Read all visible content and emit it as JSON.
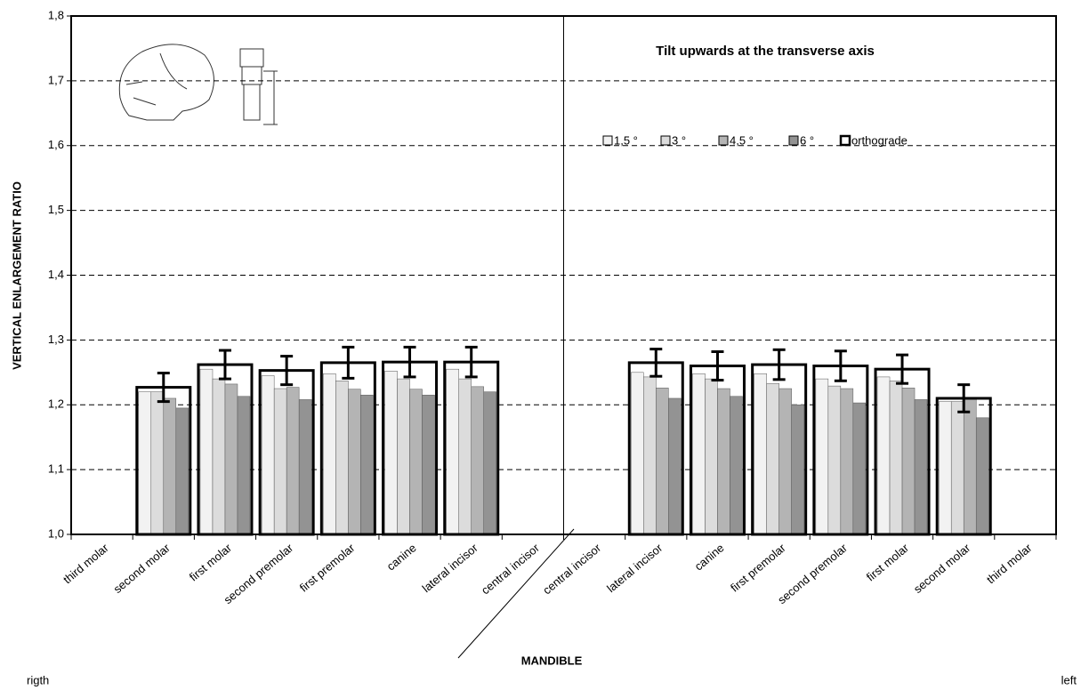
{
  "chart_data": {
    "type": "bar",
    "title": "Tilt upwards at the transverse axis",
    "y_label": "VERTICAL ENLARGEMENT RATIO",
    "x_label": "MANDIBLE",
    "side_labels": [
      "rigth",
      "left"
    ],
    "categories": [
      "third molar",
      "second molar",
      "first molar",
      "second premolar",
      "first premolar",
      "canine",
      "lateral incisor",
      "central incisor",
      "central incisor",
      "lateral incisor",
      "canine",
      "first premolar",
      "second premolar",
      "first molar",
      "second molar",
      "third molar"
    ],
    "series": [
      {
        "name": "1,5 °",
        "color": "#f2f2f2",
        "values": [
          null,
          1.22,
          1.255,
          1.245,
          1.248,
          1.252,
          1.255,
          null,
          null,
          1.25,
          1.248,
          1.248,
          1.24,
          1.243,
          1.205,
          null
        ]
      },
      {
        "name": "3 °",
        "color": "#dcdcdc",
        "values": [
          null,
          1.22,
          1.24,
          1.225,
          1.237,
          1.24,
          1.24,
          null,
          null,
          1.243,
          1.24,
          1.233,
          1.229,
          1.237,
          1.205,
          null
        ]
      },
      {
        "name": "4,5 °",
        "color": "#b4b4b4",
        "values": [
          null,
          1.21,
          1.232,
          1.227,
          1.224,
          1.224,
          1.228,
          null,
          null,
          1.226,
          1.225,
          1.225,
          1.225,
          1.226,
          1.21,
          null
        ]
      },
      {
        "name": "6 °",
        "color": "#939393",
        "values": [
          null,
          1.195,
          1.213,
          1.208,
          1.215,
          1.215,
          1.22,
          null,
          null,
          1.21,
          1.213,
          1.2,
          1.203,
          1.208,
          1.18,
          null
        ]
      },
      {
        "name": "orthograde",
        "color": "#000000",
        "values": [
          null,
          1.227,
          1.262,
          1.253,
          1.265,
          1.266,
          1.266,
          null,
          null,
          1.265,
          1.26,
          1.262,
          1.26,
          1.255,
          1.21,
          null
        ],
        "errors": [
          null,
          0.022,
          0.022,
          0.022,
          0.024,
          0.023,
          0.023,
          null,
          null,
          0.021,
          0.022,
          0.023,
          0.023,
          0.022,
          0.021,
          null
        ]
      }
    ],
    "ylim": [
      1.0,
      1.8
    ],
    "yticks": [
      {
        "value": 1.0,
        "label": "1,0"
      },
      {
        "value": 1.1,
        "label": "1,1"
      },
      {
        "value": 1.2,
        "label": "1,2"
      },
      {
        "value": 1.3,
        "label": "1,3"
      },
      {
        "value": 1.4,
        "label": "1,4"
      },
      {
        "value": 1.5,
        "label": "1,5"
      },
      {
        "value": 1.6,
        "label": "1,6"
      },
      {
        "value": 1.7,
        "label": "1,7"
      },
      {
        "value": 1.8,
        "label": "1,8"
      }
    ],
    "grid": true
  }
}
